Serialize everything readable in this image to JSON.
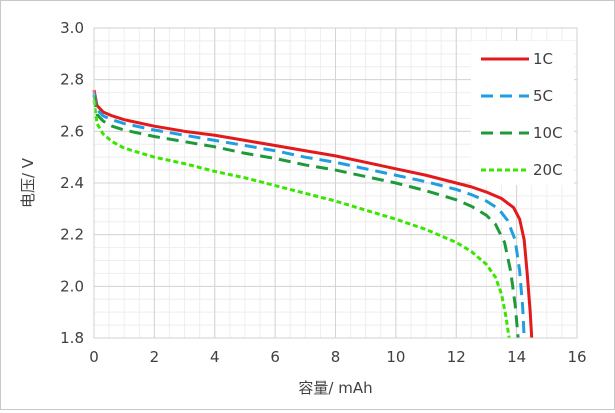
{
  "chart_data": {
    "type": "line",
    "xlabel": "容量/ mAh",
    "ylabel": "电压/ V",
    "xlim": [
      0,
      16
    ],
    "ylim": [
      1.8,
      3.0
    ],
    "xticks": [
      "0",
      "2",
      "4",
      "6",
      "8",
      "10",
      "12",
      "14",
      "16"
    ],
    "yticks": [
      "1.8",
      "2.0",
      "2.2",
      "2.4",
      "2.6",
      "2.8",
      "3.0"
    ],
    "grid": true,
    "legend_position": "top-right",
    "series": [
      {
        "name": "1C",
        "color": "#e31a1c",
        "dash": "solid",
        "points": [
          [
            0.0,
            2.76
          ],
          [
            0.1,
            2.7
          ],
          [
            0.3,
            2.675
          ],
          [
            0.6,
            2.66
          ],
          [
            1,
            2.645
          ],
          [
            2,
            2.62
          ],
          [
            3,
            2.6
          ],
          [
            4,
            2.585
          ],
          [
            5,
            2.565
          ],
          [
            6,
            2.545
          ],
          [
            7,
            2.525
          ],
          [
            8,
            2.505
          ],
          [
            9,
            2.48
          ],
          [
            10,
            2.455
          ],
          [
            11,
            2.43
          ],
          [
            12,
            2.4
          ],
          [
            12.5,
            2.385
          ],
          [
            13,
            2.365
          ],
          [
            13.5,
            2.34
          ],
          [
            13.9,
            2.305
          ],
          [
            14.1,
            2.26
          ],
          [
            14.25,
            2.18
          ],
          [
            14.35,
            2.05
          ],
          [
            14.45,
            1.9
          ],
          [
            14.5,
            1.8
          ]
        ]
      },
      {
        "name": "5C",
        "color": "#1f9ee0",
        "dash": "dash",
        "points": [
          [
            0.0,
            2.75
          ],
          [
            0.1,
            2.685
          ],
          [
            0.3,
            2.66
          ],
          [
            0.6,
            2.645
          ],
          [
            1,
            2.63
          ],
          [
            2,
            2.605
          ],
          [
            3,
            2.585
          ],
          [
            4,
            2.565
          ],
          [
            5,
            2.545
          ],
          [
            6,
            2.525
          ],
          [
            7,
            2.5
          ],
          [
            8,
            2.48
          ],
          [
            9,
            2.455
          ],
          [
            10,
            2.43
          ],
          [
            11,
            2.405
          ],
          [
            12,
            2.375
          ],
          [
            12.5,
            2.355
          ],
          [
            13,
            2.33
          ],
          [
            13.4,
            2.3
          ],
          [
            13.7,
            2.255
          ],
          [
            13.95,
            2.18
          ],
          [
            14.1,
            2.06
          ],
          [
            14.2,
            1.92
          ],
          [
            14.25,
            1.8
          ]
        ]
      },
      {
        "name": "10C",
        "color": "#1e9a3a",
        "dash": "dash",
        "points": [
          [
            0.0,
            2.74
          ],
          [
            0.1,
            2.665
          ],
          [
            0.3,
            2.64
          ],
          [
            0.6,
            2.62
          ],
          [
            1,
            2.605
          ],
          [
            2,
            2.58
          ],
          [
            3,
            2.56
          ],
          [
            4,
            2.54
          ],
          [
            5,
            2.515
          ],
          [
            6,
            2.495
          ],
          [
            7,
            2.47
          ],
          [
            8,
            2.45
          ],
          [
            9,
            2.425
          ],
          [
            10,
            2.4
          ],
          [
            11,
            2.37
          ],
          [
            12,
            2.335
          ],
          [
            12.5,
            2.31
          ],
          [
            13,
            2.275
          ],
          [
            13.3,
            2.24
          ],
          [
            13.6,
            2.17
          ],
          [
            13.8,
            2.06
          ],
          [
            13.95,
            1.93
          ],
          [
            14.05,
            1.8
          ]
        ]
      },
      {
        "name": "20C",
        "color": "#39e600",
        "dash": "dot",
        "points": [
          [
            0.0,
            2.72
          ],
          [
            0.1,
            2.63
          ],
          [
            0.3,
            2.59
          ],
          [
            0.6,
            2.56
          ],
          [
            1,
            2.535
          ],
          [
            2,
            2.5
          ],
          [
            3,
            2.475
          ],
          [
            4,
            2.445
          ],
          [
            5,
            2.42
          ],
          [
            6,
            2.39
          ],
          [
            7,
            2.36
          ],
          [
            8,
            2.33
          ],
          [
            9,
            2.295
          ],
          [
            10,
            2.26
          ],
          [
            11,
            2.22
          ],
          [
            12,
            2.17
          ],
          [
            12.5,
            2.135
          ],
          [
            13,
            2.085
          ],
          [
            13.3,
            2.035
          ],
          [
            13.5,
            1.97
          ],
          [
            13.65,
            1.88
          ],
          [
            13.75,
            1.8
          ]
        ]
      }
    ]
  }
}
